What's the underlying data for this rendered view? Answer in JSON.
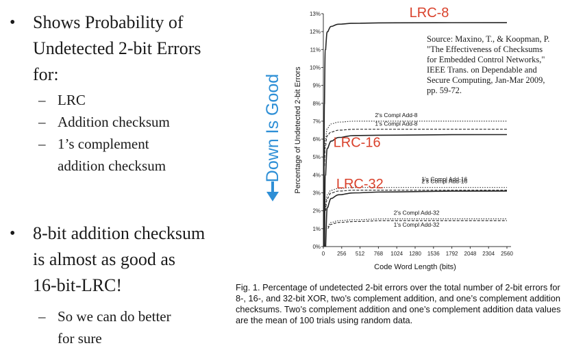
{
  "slide": {
    "bullet1": {
      "text_lines": [
        "Shows Probability of",
        "Undetected 2-bit Errors",
        "for:"
      ],
      "subs": [
        {
          "lines": [
            "LRC"
          ]
        },
        {
          "lines": [
            "Addition checksum"
          ]
        },
        {
          "lines": [
            "1’s complement",
            "addition checksum"
          ]
        }
      ]
    },
    "bullet2": {
      "text_lines": [
        "8-bit addition checksum",
        "is almost as good as",
        "16-bit-LRC!"
      ],
      "subs": [
        {
          "lines": [
            "So we can do better",
            "for sure"
          ]
        }
      ]
    },
    "bullet_glyph": "•",
    "dash_glyph": "–",
    "down_label": "➔ Down Is Good",
    "down_text": "Down Is Good",
    "accent_color": "#2e8fd6",
    "source_note": "Source: Maxino, T., & Koopman, P. \"The Effectiveness of Checksums for Embedded Control Networks,\" IEEE Trans. on Dependable and Secure Computing, Jan-Mar 2009, pp. 59-72.",
    "caption": "Fig. 1. Percentage of undetected 2-bit errors over the total number of 2-bit errors for 8-, 16-, and 32-bit XOR, two’s complement addition, and one’s complement addition checksums. Two’s complement addition and one’s complement addition data values are the mean of 100 trials using random data."
  },
  "chart_data": {
    "type": "line",
    "title": "",
    "xlabel": "Code Word Length (bits)",
    "ylabel": "Percentage of Undetected 2-bit Errors",
    "xlim": [
      0,
      2560
    ],
    "ylim": [
      0,
      13
    ],
    "x_ticks": [
      "0",
      "256",
      "512",
      "768",
      "1024",
      "1280",
      "1536",
      "1792",
      "2048",
      "2304",
      "2560"
    ],
    "y_ticks": [
      "0%",
      "1%",
      "2%",
      "3%",
      "4%",
      "5%",
      "6%",
      "7%",
      "8%",
      "9%",
      "10%",
      "11%",
      "12%",
      "13%"
    ],
    "grid": false,
    "series": [
      {
        "name": "LRC-8",
        "style": "solid",
        "color": "#222222",
        "x": [
          8,
          16,
          32,
          64,
          128,
          256,
          512,
          1024,
          2560
        ],
        "y": [
          0,
          8.0,
          11.0,
          12.0,
          12.3,
          12.42,
          12.47,
          12.49,
          12.5
        ]
      },
      {
        "name": "2's Compl Add-8",
        "style": "dotted",
        "color": "#333333",
        "x": [
          16,
          32,
          64,
          128,
          256,
          512,
          1024,
          2560
        ],
        "y": [
          4.8,
          6.0,
          6.6,
          6.85,
          6.95,
          7.0,
          7.0,
          7.0
        ]
      },
      {
        "name": "1's Compl Add-8",
        "style": "dashed",
        "color": "#333333",
        "x": [
          16,
          32,
          64,
          128,
          256,
          512,
          1024,
          2560
        ],
        "y": [
          4.5,
          5.6,
          6.2,
          6.4,
          6.5,
          6.55,
          6.55,
          6.55
        ]
      },
      {
        "name": "LRC-16",
        "style": "solid",
        "color": "#222222",
        "x": [
          16,
          32,
          64,
          128,
          256,
          512,
          1024,
          2560
        ],
        "y": [
          0,
          4.0,
          5.5,
          5.9,
          6.1,
          6.2,
          6.22,
          6.25
        ]
      },
      {
        "name": "2's Compl Add-16",
        "style": "dotted",
        "color": "#333333",
        "x": [
          32,
          64,
          128,
          256,
          512,
          1024,
          2560
        ],
        "y": [
          2.2,
          2.9,
          3.15,
          3.25,
          3.3,
          3.3,
          3.3
        ]
      },
      {
        "name": "1's Compl Add-16",
        "style": "dashed",
        "color": "#333333",
        "x": [
          32,
          64,
          128,
          256,
          512,
          1024,
          2560
        ],
        "y": [
          2.0,
          2.7,
          3.0,
          3.1,
          3.15,
          3.15,
          3.15
        ]
      },
      {
        "name": "LRC-32",
        "style": "solid",
        "color": "#222222",
        "x": [
          32,
          64,
          128,
          256,
          512,
          1024,
          2560
        ],
        "y": [
          0,
          2.2,
          2.7,
          2.9,
          3.0,
          3.05,
          3.1
        ]
      },
      {
        "name": "2's Compl Add-32",
        "style": "dotted",
        "color": "#333333",
        "x": [
          64,
          128,
          256,
          512,
          1024,
          2560
        ],
        "y": [
          1.1,
          1.35,
          1.45,
          1.5,
          1.55,
          1.55
        ]
      },
      {
        "name": "1's Compl Add-32",
        "style": "dashed",
        "color": "#333333",
        "x": [
          64,
          128,
          256,
          512,
          1024,
          2560
        ],
        "y": [
          1.0,
          1.25,
          1.35,
          1.4,
          1.45,
          1.45
        ]
      }
    ],
    "annotations": [
      {
        "text": "LRC-8",
        "series": "LRC-8",
        "color": "#d9412b",
        "big": true
      },
      {
        "text": "LRC-16",
        "series": "LRC-16",
        "color": "#d9412b",
        "big": true
      },
      {
        "text": "LRC-32",
        "series": "LRC-32",
        "color": "#d9412b",
        "big": true
      },
      {
        "text": "2's Compl Add-8",
        "series": "2's Compl Add-8",
        "big": false
      },
      {
        "text": "1's Compl Add-8",
        "series": "1's Compl Add-8",
        "big": false
      },
      {
        "text": "2's Compl Add-16",
        "series": "2's Compl Add-16",
        "big": false
      },
      {
        "text": "1's Compl Add-16",
        "series": "1's Compl Add-16",
        "big": false
      },
      {
        "text": "2's Compl Add-32",
        "series": "2's Compl Add-32",
        "big": false
      },
      {
        "text": "1's Compl Add-32",
        "series": "1's Compl Add-32",
        "big": false
      }
    ]
  }
}
